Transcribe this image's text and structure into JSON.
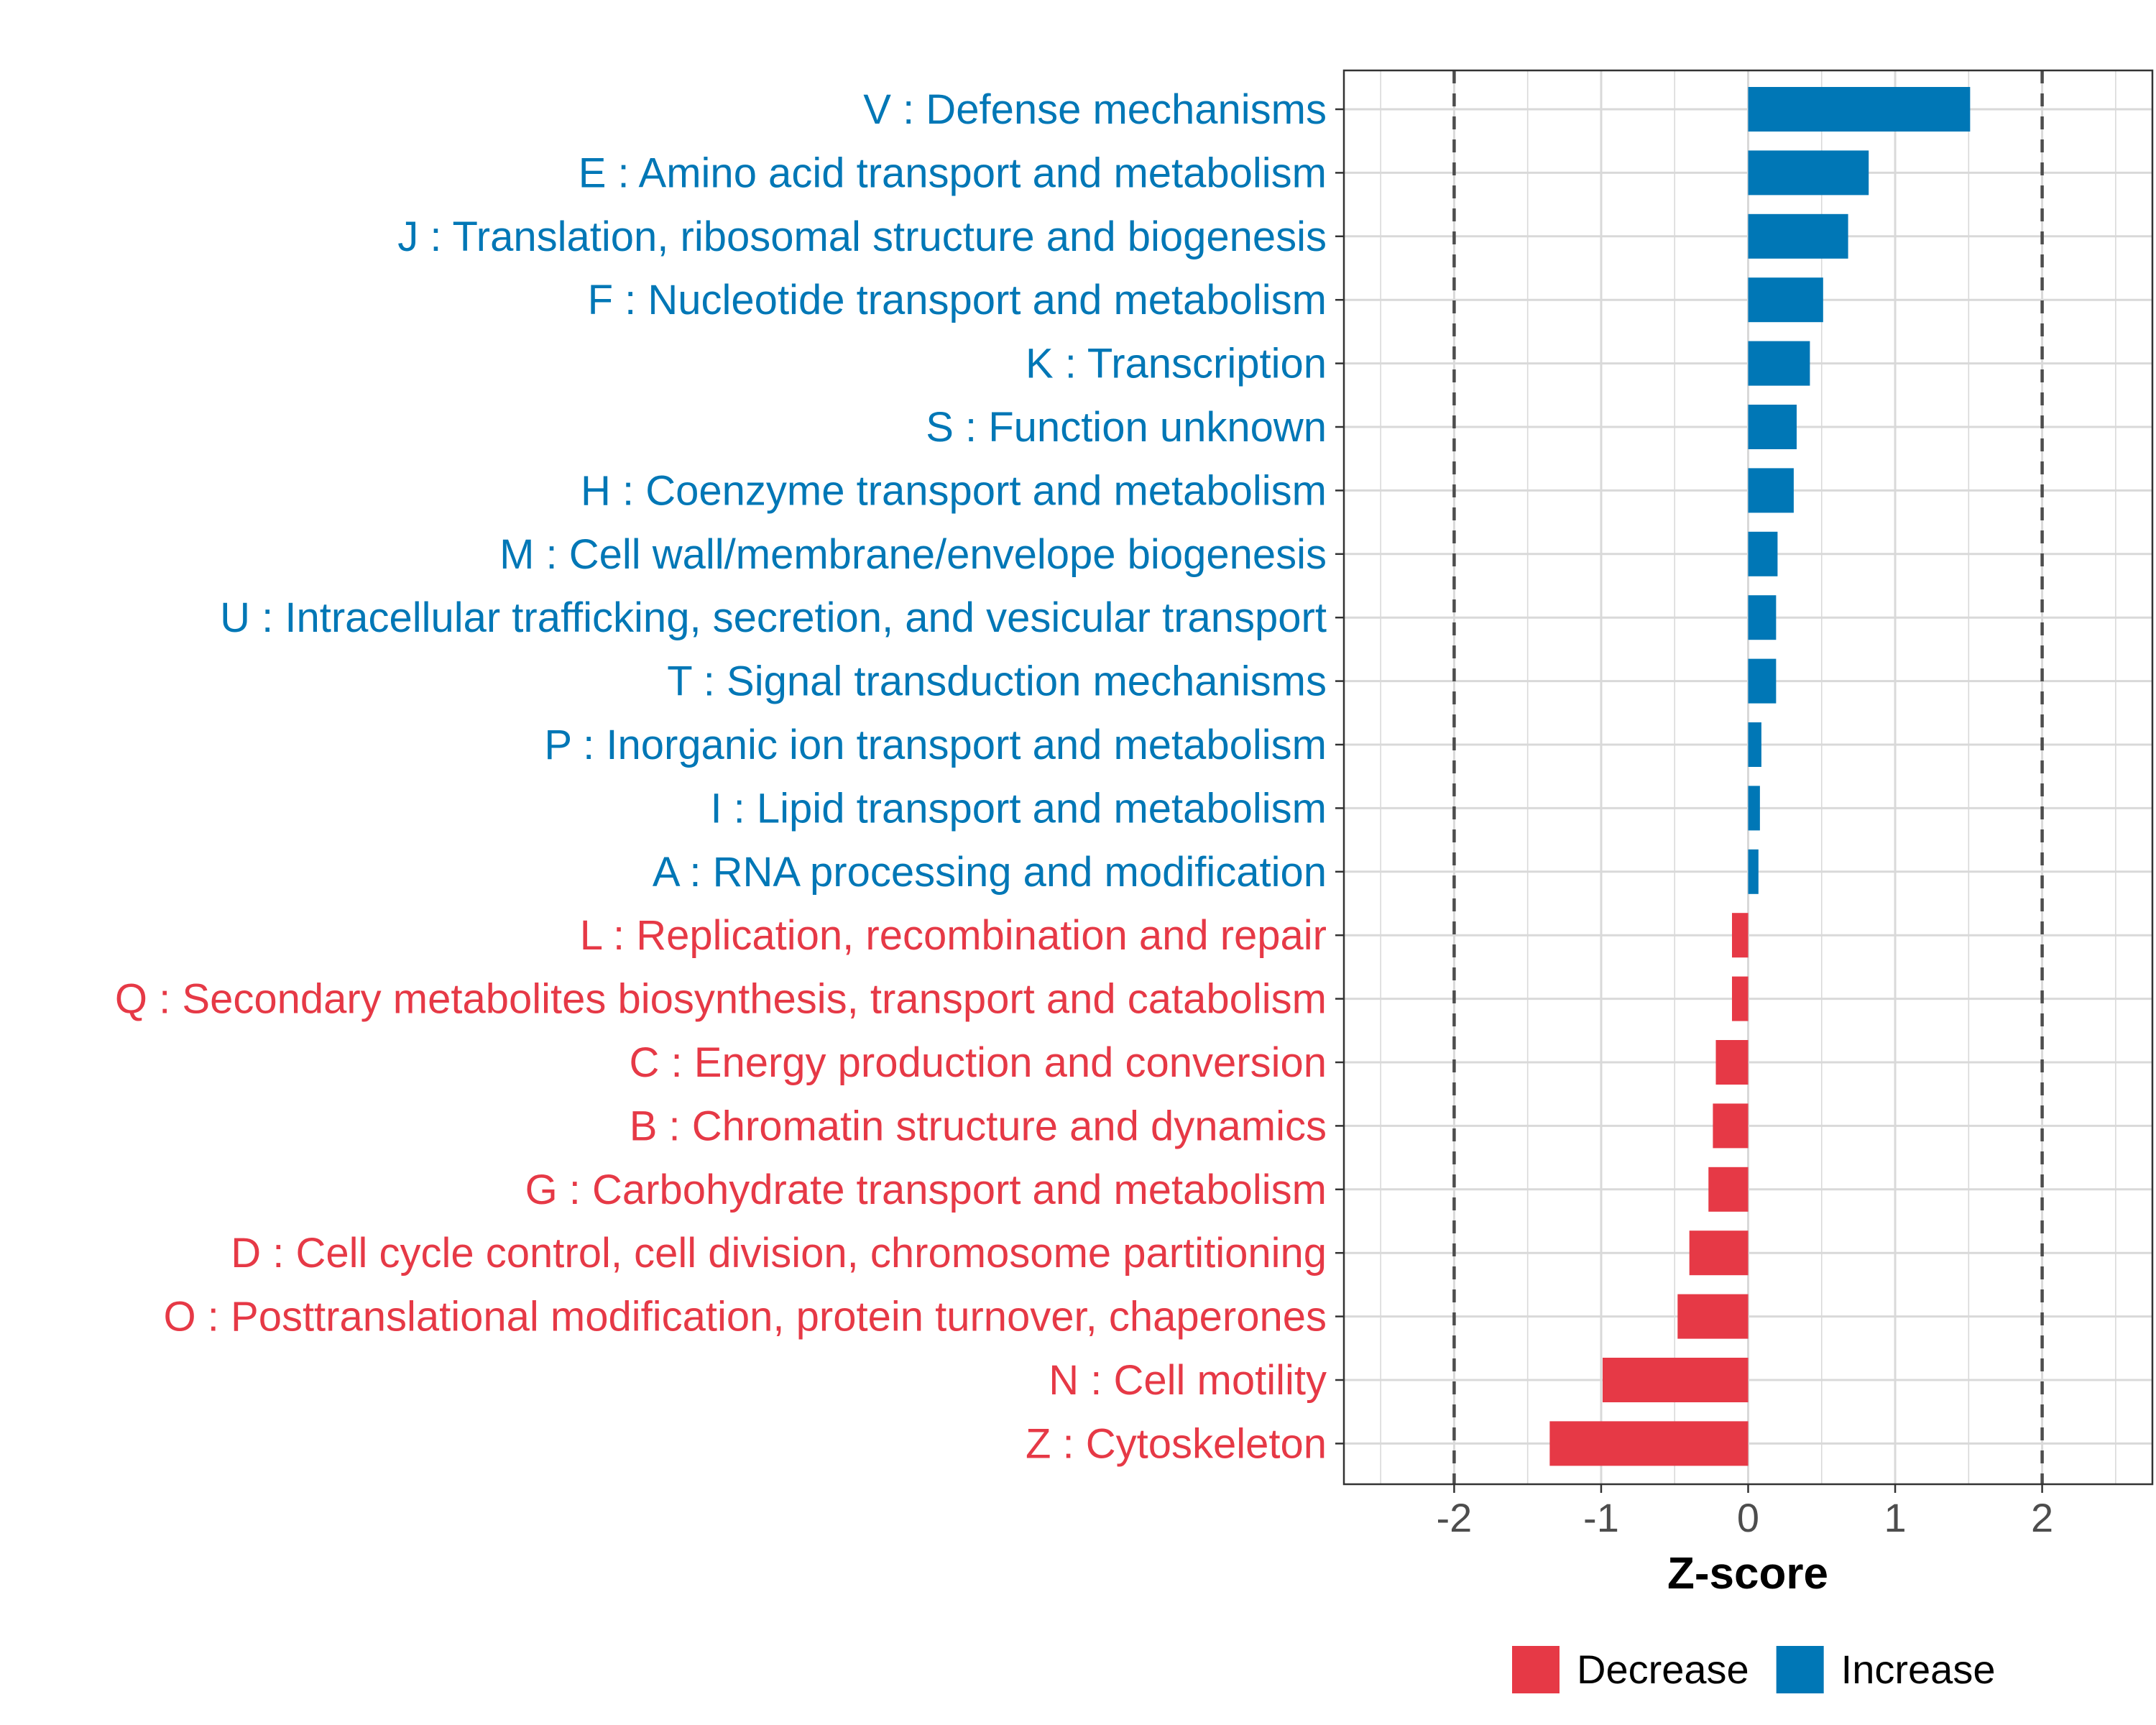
{
  "chart_data": {
    "type": "bar",
    "orientation": "horizontal",
    "title": "",
    "xlabel": "Z-score",
    "ylabel": "",
    "xlim": [
      -2.75,
      2.75
    ],
    "xticks": [
      -2,
      -1,
      0,
      1,
      2
    ],
    "xtick_labels": [
      "-2",
      "-1",
      "0",
      "1",
      "2"
    ],
    "reference_lines": [
      -2,
      2
    ],
    "grid": true,
    "legend_position": "bottom",
    "legend": [
      {
        "name": "Decrease",
        "color": "#e63946"
      },
      {
        "name": "Increase",
        "color": "#0077b6"
      }
    ],
    "categories": [
      "V : Defense mechanisms",
      "E : Amino acid transport and metabolism",
      "J : Translation, ribosomal structure and biogenesis",
      "F : Nucleotide transport and metabolism",
      "K : Transcription",
      "S : Function unknown",
      "H : Coenzyme transport and metabolism",
      "M : Cell wall/membrane/envelope biogenesis",
      "U : Intracellular trafficking, secretion, and vesicular transport",
      "T : Signal transduction mechanisms",
      "P : Inorganic ion transport and metabolism",
      "I : Lipid transport and metabolism",
      "A : RNA processing and modification",
      "L : Replication, recombination and repair",
      "Q : Secondary metabolites biosynthesis, transport and catabolism",
      "C : Energy production and conversion",
      "B : Chromatin structure and dynamics",
      "G : Carbohydrate transport and metabolism",
      "D : Cell cycle control, cell division, chromosome partitioning",
      "O : Posttranslational modification, protein turnover, chaperones",
      "N : Cell motility",
      "Z : Cytoskeleton"
    ],
    "values": [
      1.51,
      0.82,
      0.68,
      0.51,
      0.42,
      0.33,
      0.31,
      0.2,
      0.19,
      0.19,
      0.09,
      0.08,
      0.07,
      -0.11,
      -0.11,
      -0.22,
      -0.24,
      -0.27,
      -0.4,
      -0.48,
      -0.99,
      -1.35
    ],
    "groups": [
      "Increase",
      "Increase",
      "Increase",
      "Increase",
      "Increase",
      "Increase",
      "Increase",
      "Increase",
      "Increase",
      "Increase",
      "Increase",
      "Increase",
      "Increase",
      "Decrease",
      "Decrease",
      "Decrease",
      "Decrease",
      "Decrease",
      "Decrease",
      "Decrease",
      "Decrease",
      "Decrease"
    ]
  },
  "colors": {
    "increase": "#0077b6",
    "decrease": "#e63946",
    "grid": "#d9d9d9",
    "axis": "#333333",
    "tick_text": "#4d4d4d",
    "reference_line": "#4d4d4d"
  }
}
